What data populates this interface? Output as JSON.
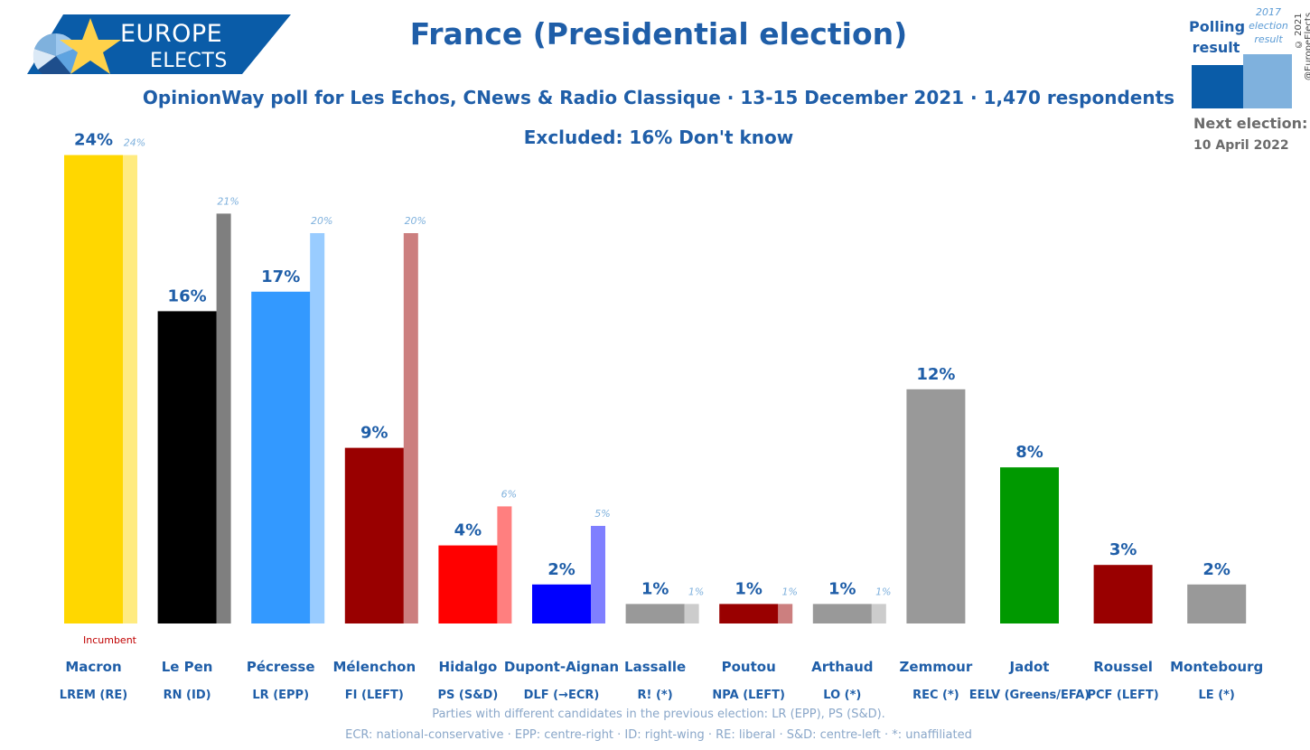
{
  "logo": {
    "top": "EUROPE",
    "bottom": "ELECTS"
  },
  "title": "France (Presidential election)",
  "subtitle": "OpinionWay poll for Les Echos, CNews & Radio Classique · 13-15 December 2021 · 1,470 respondents",
  "excluded": "Excluded: 16% Don't know",
  "legend": {
    "poll_label": "Polling result",
    "prev_label": "2017 election result",
    "poll_color": "#0a5ca8",
    "prev_color": "#7fb1dd"
  },
  "next_election": {
    "label": "Next election:",
    "date": "10 April 2022"
  },
  "copyright": "© 2021 @EuropeElects",
  "incumbent_label": "Incumbent",
  "footnotes": [
    "Parties with different candidates in the previous election: LR (EPP), PS (S&D).",
    "ECR: national-conservative · EPP: centre-right · ID: right-wing · RE: liberal · S&D: centre-left · *: unaffiliated"
  ],
  "chart_data": {
    "type": "bar",
    "ylim": [
      0,
      24
    ],
    "series": [
      {
        "name": "Polling result",
        "values": [
          24,
          16,
          17,
          9,
          4,
          2,
          1,
          1,
          1,
          12,
          8,
          3,
          2
        ]
      },
      {
        "name": "2017 election result",
        "values": [
          24,
          21,
          20,
          20,
          6,
          5,
          1,
          1,
          1,
          null,
          null,
          null,
          null
        ]
      }
    ],
    "categories": [
      "Macron",
      "Le Pen",
      "Pécresse",
      "Mélenchon",
      "Hidalgo",
      "Dupont-Aignan",
      "Lassalle",
      "Poutou",
      "Arthaud",
      "Zemmour",
      "Jadot",
      "Roussel",
      "Montebourg"
    ],
    "parties": [
      "LREM (RE)",
      "RN (ID)",
      "LR (EPP)",
      "FI (LEFT)",
      "PS (S&D)",
      "DLF (→ECR)",
      "R! (*)",
      "NPA (LEFT)",
      "LO (*)",
      "REC (*)",
      "EELV (Greens/EFA)",
      "PCF (LEFT)",
      "LE (*)"
    ],
    "labels_poll": [
      "24%",
      "16%",
      "17%",
      "9%",
      "4%",
      "2%",
      "1%",
      "1%",
      "1%",
      "12%",
      "8%",
      "3%",
      "2%"
    ],
    "labels_prev": [
      "24%",
      "21%",
      "20%",
      "20%",
      "6%",
      "5%",
      "1%",
      "1%",
      "1%",
      "",
      "",
      "",
      ""
    ],
    "bar_heights_poll_pct": [
      24,
      16,
      17,
      9,
      4,
      2,
      1,
      1,
      1,
      12,
      8,
      3,
      2
    ],
    "colors_poll": [
      "#ffd700",
      "#000000",
      "#3399ff",
      "#990000",
      "#ff0000",
      "#0000ff",
      "#999999",
      "#990000",
      "#999999",
      "#999999",
      "#009900",
      "#990000",
      "#999999"
    ],
    "colors_prev": [
      "#ffeb80",
      "#7f7f7f",
      "#99ccff",
      "#cc7f7f",
      "#ff7f7f",
      "#7f7fff",
      "#cccccc",
      "#cc7f7f",
      "#cccccc",
      null,
      null,
      null,
      null
    ]
  }
}
